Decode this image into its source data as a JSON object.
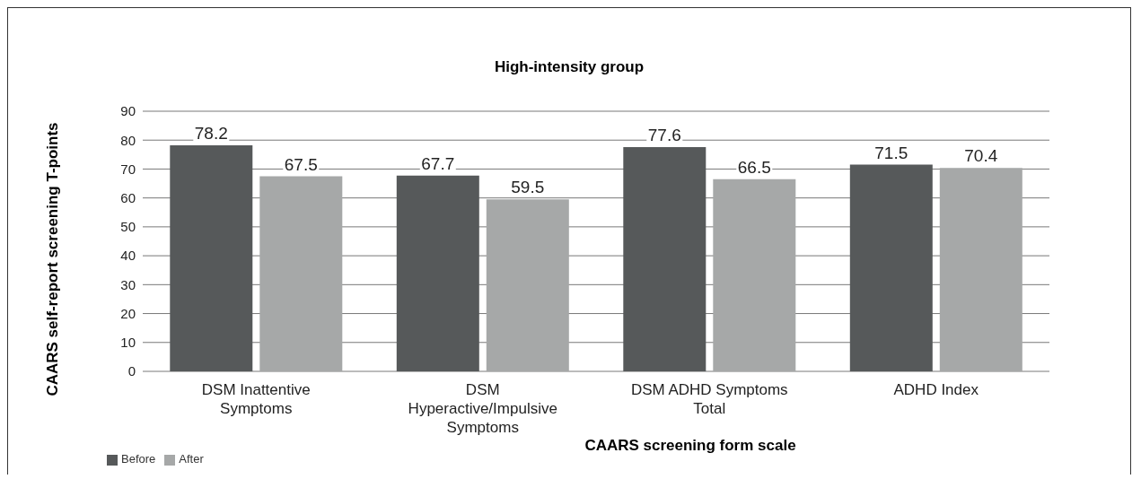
{
  "chart_data": {
    "type": "bar",
    "title": "High-intensity group",
    "xlabel": "CAARS screening form scale",
    "ylabel": "CAARS self-report screening T-points",
    "categories": [
      "DSM Inattentive Symptoms",
      "DSM Hyperactive/Impulsive Symptoms",
      "DSM ADHD Symptoms Total",
      "ADHD Index"
    ],
    "series": [
      {
        "name": "Before",
        "color": "#56595a",
        "values": [
          78.2,
          67.7,
          77.6,
          71.5
        ]
      },
      {
        "name": "After",
        "color": "#a6a8a8",
        "values": [
          67.5,
          59.5,
          66.5,
          70.4
        ]
      }
    ],
    "ylim": [
      0,
      90
    ],
    "yticks": [
      0,
      10,
      20,
      30,
      40,
      50,
      60,
      70,
      80,
      90
    ],
    "grid": "y",
    "legend": "bottom left",
    "data_labels": true
  }
}
